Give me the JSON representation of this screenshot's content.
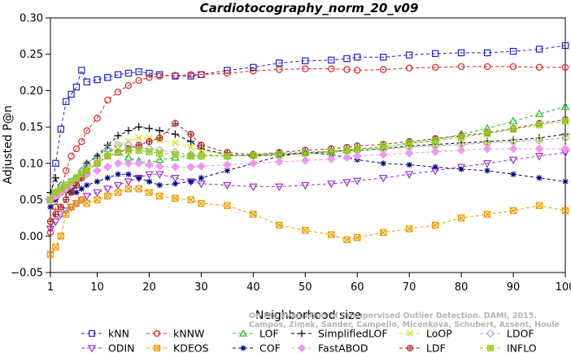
{
  "chart_data": {
    "type": "line",
    "title": "Cardiotocography_norm_20_v09",
    "xlabel": "Neighborhood size",
    "ylabel": "Adjusted P@n",
    "xlim": [
      1,
      100
    ],
    "ylim": [
      -0.05,
      0.3
    ],
    "x_ticks": [
      1,
      10,
      20,
      30,
      40,
      50,
      60,
      70,
      80,
      90,
      100
    ],
    "y_ticks": [
      -0.05,
      0.0,
      0.05,
      0.1,
      0.15,
      0.2,
      0.25,
      0.3
    ],
    "y_tick_labels": [
      "−0.05",
      "0.00",
      "0.05",
      "0.10",
      "0.15",
      "0.20",
      "0.25",
      "0.30"
    ],
    "grid": false,
    "legend_position": "bottom",
    "watermark": [
      "Campos, Zimek, Sander, Campello, Micenkova, Schubert, Assent, Houle",
      "On the Evaluation of Unsupervised Outlier Detection. DAMI, 2015."
    ],
    "sample_x": [
      1,
      2,
      3,
      4,
      5,
      6,
      7,
      8,
      10,
      12,
      14,
      16,
      18,
      20,
      22,
      25,
      28,
      30,
      35,
      40,
      45,
      50,
      55,
      58,
      60,
      65,
      70,
      75,
      80,
      85,
      90,
      95,
      100
    ],
    "series": [
      {
        "name": "kNN",
        "color": "#2222cc",
        "marker": "square",
        "line": "dash",
        "values": [
          0.05,
          0.1,
          0.147,
          0.185,
          0.195,
          0.205,
          0.228,
          0.212,
          0.215,
          0.218,
          0.222,
          0.224,
          0.226,
          0.224,
          0.222,
          0.22,
          0.22,
          0.222,
          0.228,
          0.232,
          0.238,
          0.241,
          0.242,
          0.244,
          0.246,
          0.246,
          0.249,
          0.251,
          0.252,
          0.252,
          0.254,
          0.257,
          0.262
        ]
      },
      {
        "name": "kNNW",
        "color": "#dd2222",
        "marker": "circle",
        "line": "dash",
        "values": [
          0.005,
          0.04,
          0.06,
          0.09,
          0.11,
          0.12,
          0.13,
          0.145,
          0.162,
          0.187,
          0.198,
          0.207,
          0.214,
          0.218,
          0.22,
          0.221,
          0.222,
          0.222,
          0.224,
          0.227,
          0.229,
          0.23,
          0.23,
          0.229,
          0.228,
          0.229,
          0.231,
          0.232,
          0.233,
          0.233,
          0.233,
          0.232,
          0.232
        ]
      },
      {
        "name": "LOF",
        "color": "#22bb22",
        "marker": "triangle",
        "line": "dash",
        "values": [
          0.05,
          0.06,
          0.07,
          0.065,
          0.07,
          0.08,
          0.09,
          0.1,
          0.11,
          0.12,
          0.115,
          0.108,
          0.103,
          0.1,
          0.105,
          0.108,
          0.11,
          0.112,
          0.11,
          0.112,
          0.113,
          0.115,
          0.117,
          0.118,
          0.12,
          0.122,
          0.128,
          0.132,
          0.14,
          0.148,
          0.158,
          0.168,
          0.178
        ]
      },
      {
        "name": "SimplifiedLOF",
        "color": "#000000",
        "marker": "plus",
        "line": "dash",
        "values": [
          0.06,
          0.08,
          0.06,
          0.06,
          0.065,
          0.07,
          0.08,
          0.1,
          0.11,
          0.125,
          0.138,
          0.145,
          0.15,
          0.148,
          0.145,
          0.14,
          0.13,
          0.12,
          0.112,
          0.11,
          0.112,
          0.114,
          0.116,
          0.118,
          0.118,
          0.12,
          0.124,
          0.126,
          0.128,
          0.13,
          0.132,
          0.135,
          0.14
        ]
      },
      {
        "name": "LoOP",
        "color": "#dddd00",
        "marker": "x",
        "line": "dash",
        "values": [
          0.04,
          0.05,
          0.06,
          0.07,
          0.075,
          0.08,
          0.085,
          0.095,
          0.105,
          0.115,
          0.125,
          0.13,
          0.135,
          0.135,
          0.132,
          0.128,
          0.122,
          0.118,
          0.112,
          0.11,
          0.112,
          0.113,
          0.115,
          0.117,
          0.118,
          0.12,
          0.122,
          0.124,
          0.126,
          0.128,
          0.13,
          0.132,
          0.135
        ]
      },
      {
        "name": "LDOF",
        "color": "#aaaadd",
        "marker": "diamond",
        "line": "dash",
        "values": [
          0.05,
          0.06,
          0.07,
          0.07,
          0.075,
          0.08,
          0.09,
          0.1,
          0.11,
          0.12,
          0.125,
          0.125,
          0.122,
          0.12,
          0.118,
          0.115,
          0.112,
          0.11,
          0.11,
          0.112,
          0.114,
          0.115,
          0.116,
          0.117,
          0.118,
          0.12,
          0.122,
          0.124,
          0.126,
          0.128,
          0.13,
          0.132,
          0.135
        ]
      },
      {
        "name": "ODIN",
        "color": "#9933cc",
        "marker": "triangle-down",
        "line": "dash",
        "values": [
          0.01,
          0.02,
          0.03,
          0.035,
          0.04,
          0.045,
          0.05,
          0.055,
          0.06,
          0.065,
          0.07,
          0.075,
          0.08,
          0.085,
          0.085,
          0.08,
          0.075,
          0.072,
          0.07,
          0.068,
          0.068,
          0.07,
          0.072,
          0.074,
          0.076,
          0.08,
          0.085,
          0.09,
          0.095,
          0.1,
          0.105,
          0.11,
          0.115
        ]
      },
      {
        "name": "KDEOS",
        "color": "#ee9900",
        "marker": "square-x",
        "line": "dash",
        "values": [
          -0.025,
          -0.015,
          0.0,
          0.03,
          0.04,
          0.045,
          0.05,
          0.045,
          0.05,
          0.055,
          0.06,
          0.065,
          0.065,
          0.06,
          0.055,
          0.052,
          0.05,
          0.045,
          0.042,
          0.03,
          0.015,
          0.008,
          0.002,
          -0.005,
          -0.002,
          0.005,
          0.01,
          0.015,
          0.025,
          0.03,
          0.035,
          0.042,
          0.035
        ]
      },
      {
        "name": "COF",
        "color": "#000088",
        "marker": "asterisk",
        "line": "dash",
        "values": [
          0.04,
          0.05,
          0.06,
          0.065,
          0.06,
          0.06,
          0.065,
          0.07,
          0.075,
          0.08,
          0.085,
          0.085,
          0.08,
          0.075,
          0.07,
          0.072,
          0.075,
          0.08,
          0.09,
          0.1,
          0.11,
          0.115,
          0.112,
          0.108,
          0.105,
          0.1,
          0.098,
          0.095,
          0.092,
          0.09,
          0.085,
          0.08,
          0.075
        ]
      },
      {
        "name": "FastABOD",
        "color": "#ee99ee",
        "marker": "diamond-filled",
        "line": "dash",
        "values": [
          0.05,
          0.055,
          0.06,
          0.065,
          0.07,
          0.075,
          0.08,
          0.085,
          0.09,
          0.095,
          0.1,
          0.1,
          0.1,
          0.098,
          0.096,
          0.095,
          0.095,
          0.096,
          0.098,
          0.1,
          0.102,
          0.104,
          0.106,
          0.108,
          0.11,
          0.112,
          0.114,
          0.116,
          0.118,
          0.12,
          0.12,
          0.12,
          0.12
        ]
      },
      {
        "name": "LDF",
        "color": "#aa2222",
        "marker": "circle-plus",
        "line": "dash",
        "values": [
          0.02,
          0.03,
          0.04,
          0.05,
          0.06,
          0.07,
          0.08,
          0.09,
          0.1,
          0.11,
          0.115,
          0.12,
          0.125,
          0.13,
          0.135,
          0.155,
          0.14,
          0.125,
          0.115,
          0.112,
          0.115,
          0.118,
          0.12,
          0.122,
          0.124,
          0.126,
          0.13,
          0.134,
          0.138,
          0.142,
          0.148,
          0.155,
          0.16
        ]
      },
      {
        "name": "INFLO",
        "color": "#99cc22",
        "marker": "square-asterisk",
        "line": "dash",
        "values": [
          0.05,
          0.06,
          0.065,
          0.07,
          0.075,
          0.08,
          0.085,
          0.09,
          0.1,
          0.11,
          0.115,
          0.118,
          0.118,
          0.116,
          0.114,
          0.112,
          0.11,
          0.11,
          0.11,
          0.111,
          0.112,
          0.114,
          0.116,
          0.118,
          0.12,
          0.123,
          0.127,
          0.131,
          0.136,
          0.141,
          0.147,
          0.153,
          0.158
        ]
      }
    ]
  }
}
